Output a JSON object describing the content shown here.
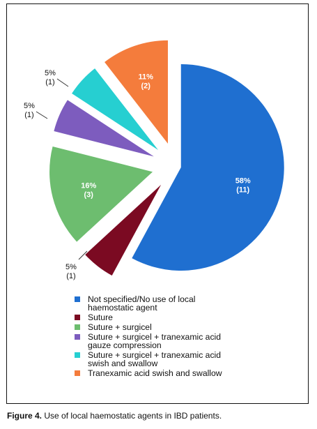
{
  "chart_data": {
    "type": "pie",
    "slices": [
      {
        "label": "Not specified/No use of local\nhaemostatic agent",
        "percent_label": "58%",
        "count_label": "(11)",
        "value": 11,
        "color": "#1f6fd0"
      },
      {
        "label": "Suture",
        "percent_label": "5%",
        "count_label": "(1)",
        "value": 1,
        "color": "#7b0a22"
      },
      {
        "label": "Suture + surgicel",
        "percent_label": "16%",
        "count_label": "(3)",
        "value": 3,
        "color": "#6dbd6f"
      },
      {
        "label": "Suture + surgicel + tranexamic acid\ngauze compression",
        "percent_label": "5%",
        "count_label": "(1)",
        "value": 1,
        "color": "#7d5cbe"
      },
      {
        "label": "Suture + surgicel + tranexamic acid\nswish and swallow",
        "percent_label": "5%",
        "count_label": "(1)",
        "value": 1,
        "color": "#26cfd1"
      },
      {
        "label": "Tranexamic acid  swish and swallow",
        "percent_label": "11%",
        "count_label": "(2)",
        "value": 2,
        "color": "#f47c3c"
      }
    ]
  },
  "caption": {
    "prefix": "Figure 4.",
    "text": " Use of local haemostatic agents in IBD patients."
  }
}
